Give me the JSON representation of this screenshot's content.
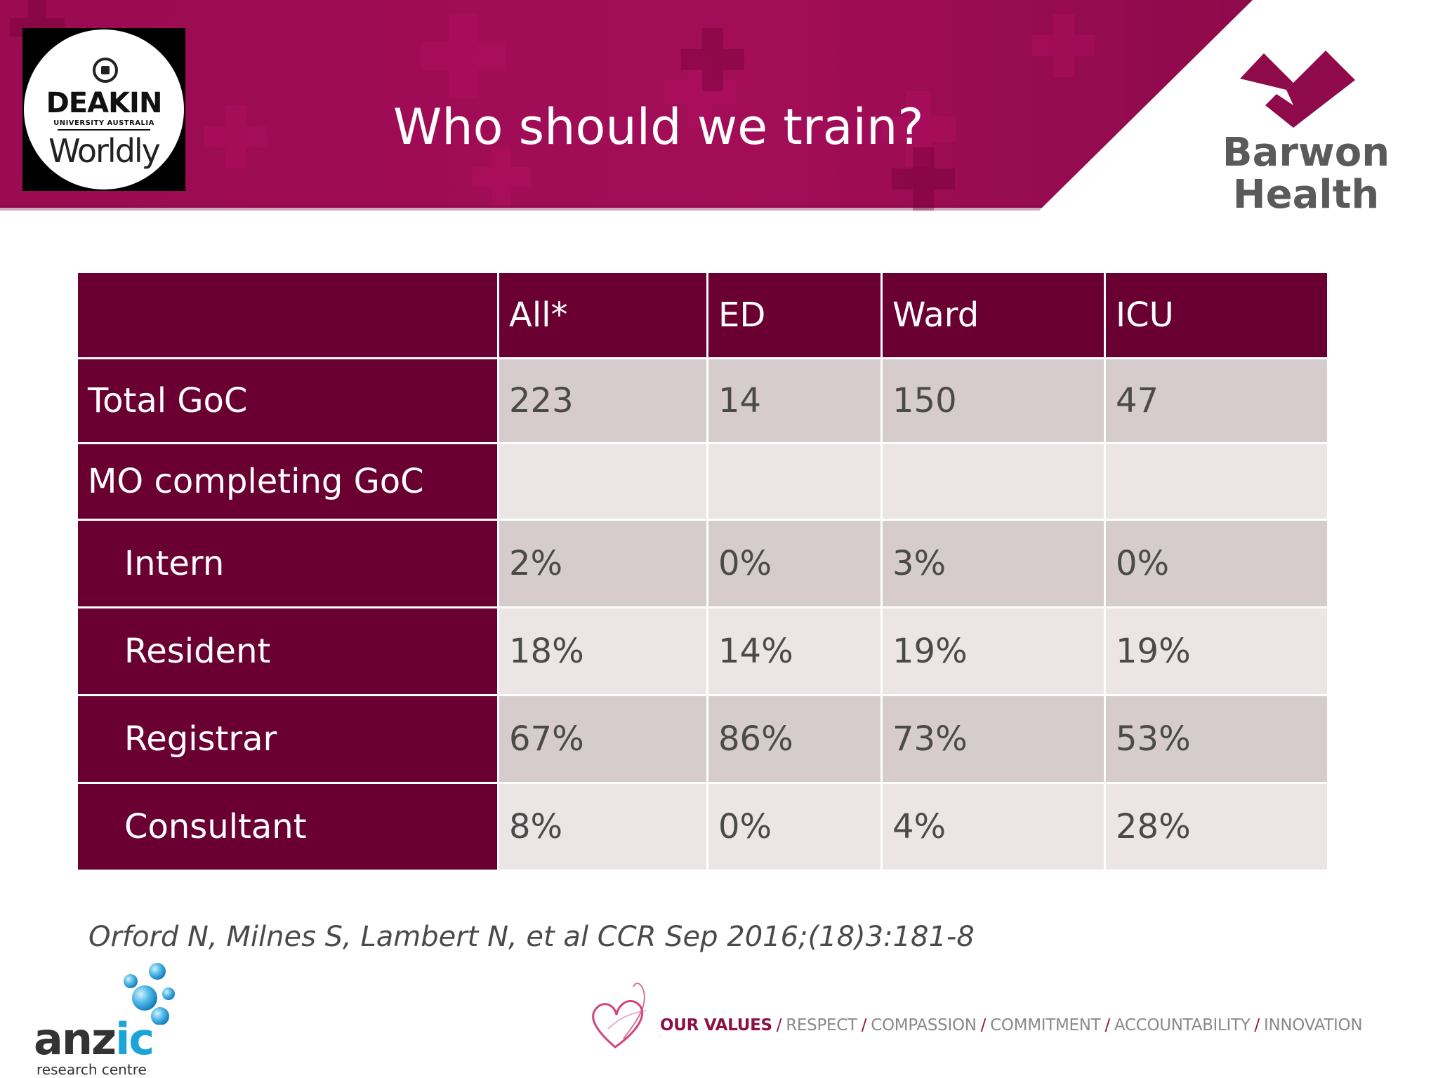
{
  "header": {
    "title": "Who should we train?",
    "deakin": {
      "name": "DEAKIN",
      "subtitle": "UNIVERSITY AUSTRALIA",
      "tagline": "Worldly"
    },
    "barwon": {
      "line1": "Barwon",
      "line2": "Health"
    },
    "band_color": "#9e0c54",
    "accent_dark": "#6a0032"
  },
  "table": {
    "columns": [
      "",
      "All*",
      "ED",
      "Ward",
      "ICU"
    ],
    "rows": [
      {
        "label": "Total GoC",
        "indent": false,
        "values": [
          "223",
          "14",
          "150",
          "47"
        ]
      },
      {
        "label": "MO completing GoC",
        "indent": false,
        "values": [
          "",
          "",
          "",
          ""
        ]
      },
      {
        "label": "Intern",
        "indent": true,
        "values": [
          "2%",
          "0%",
          "3%",
          "0%"
        ]
      },
      {
        "label": "Resident",
        "indent": true,
        "values": [
          "18%",
          "14%",
          "19%",
          "19%"
        ]
      },
      {
        "label": "Registrar",
        "indent": true,
        "values": [
          "67%",
          "86%",
          "73%",
          "53%"
        ]
      },
      {
        "label": "Consultant",
        "indent": true,
        "values": [
          "8%",
          "0%",
          "4%",
          "28%"
        ]
      }
    ]
  },
  "citation": "Orford N, Milnes S, Lambert N, et al CCR Sep 2016;(18)3:181-8",
  "footer": {
    "anzic": {
      "part1": "anz",
      "part2": "ic",
      "subtitle": "research centre"
    },
    "values_lead": "OUR VALUES",
    "values": [
      "RESPECT",
      "COMPASSION",
      "COMMITMENT",
      "ACCOUNTABILITY",
      "INNOVATION"
    ]
  }
}
